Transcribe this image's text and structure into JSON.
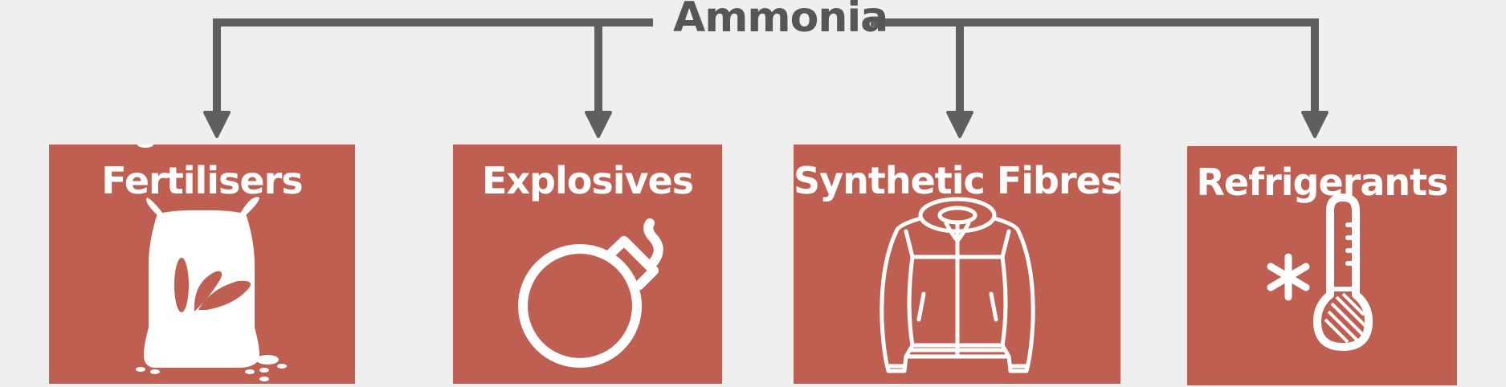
{
  "diagram": {
    "root_label": "Ammonia",
    "uses": [
      {
        "label": "Fertilisers",
        "icon": "fertiliser-sack-icon"
      },
      {
        "label": "Explosives",
        "icon": "bomb-icon"
      },
      {
        "label": "Synthetic Fibres",
        "icon": "jacket-icon"
      },
      {
        "label": "Refrigerants",
        "icon": "snowflake-thermometer-icon"
      }
    ]
  },
  "colors": {
    "card": "#bf5f51",
    "connector": "#5f5f5f",
    "background": "#efefef",
    "text_dark": "#565656",
    "text_light": "#ffffff"
  }
}
